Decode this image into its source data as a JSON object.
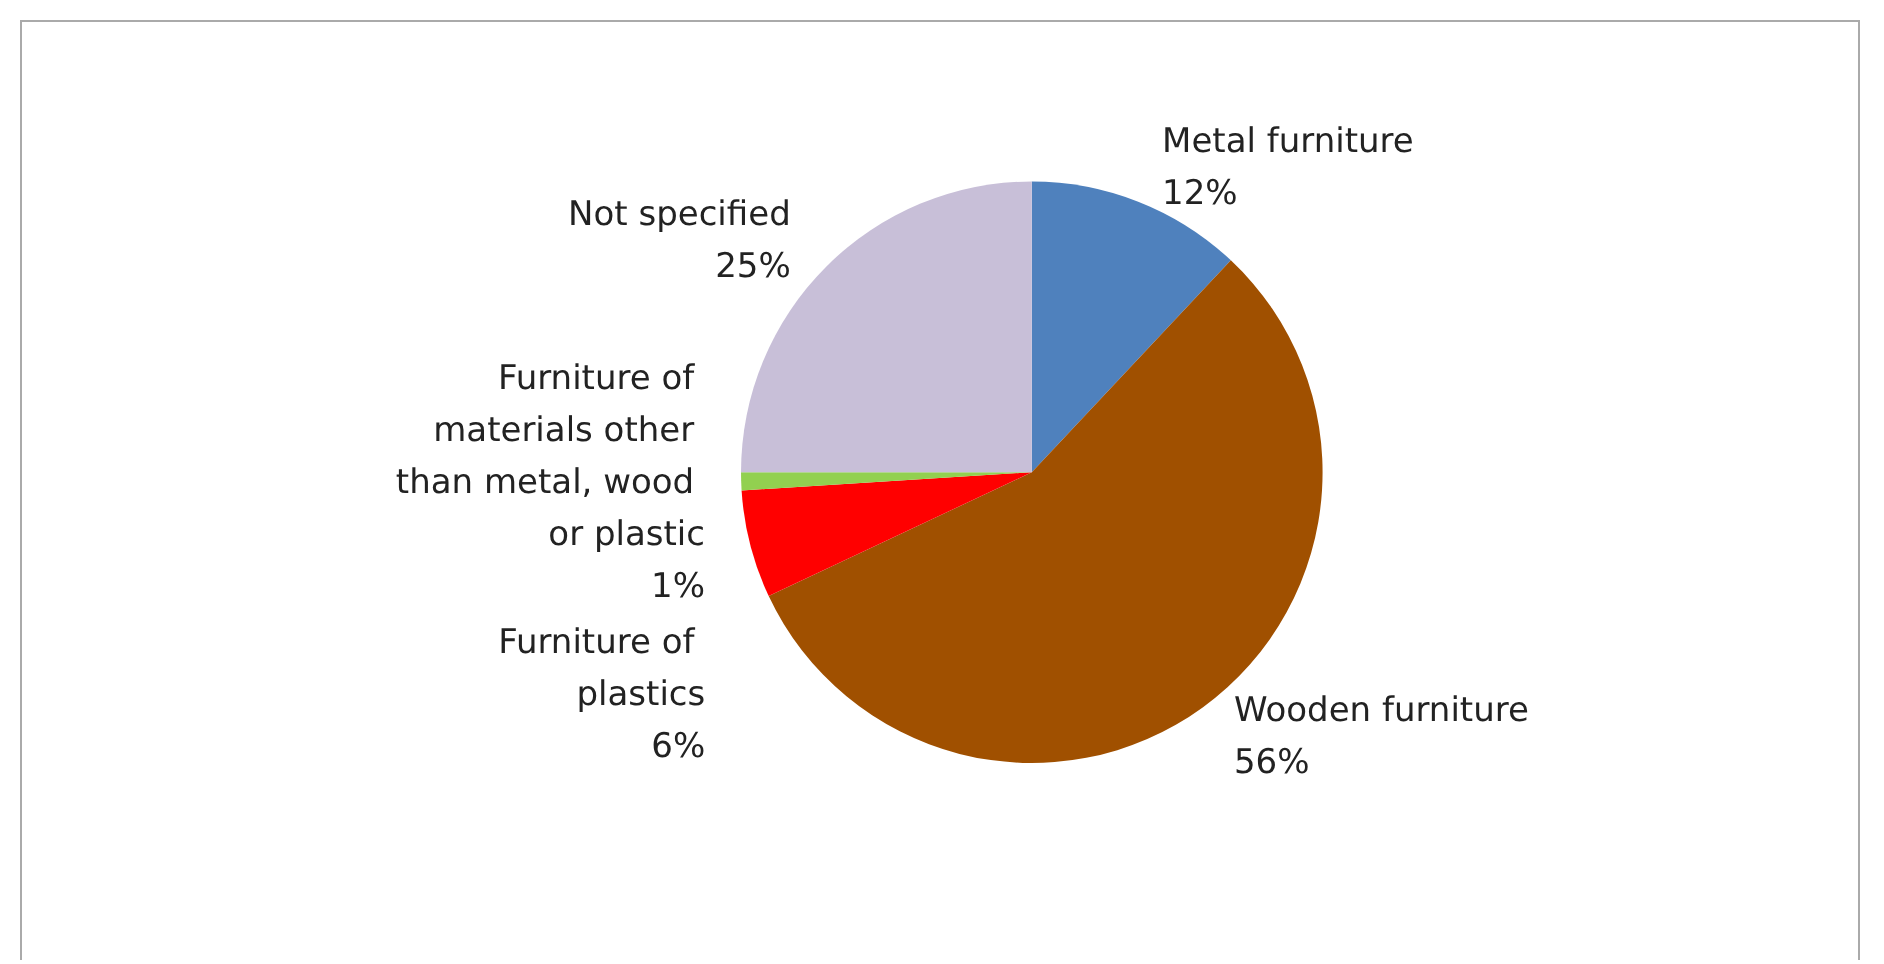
{
  "chart_data": {
    "type": "pie",
    "categories": [
      "Metal furniture",
      "Wooden furniture",
      "Furniture of plastics",
      "Furniture of materials other than metal, wood or plastic",
      "Not specified"
    ],
    "values": [
      12,
      56,
      6,
      1,
      25
    ],
    "colors": [
      "#4f81bd",
      "#a05000",
      "#ff0000",
      "#92d050",
      "#c8bfd8"
    ],
    "value_labels": [
      "12%",
      "56%",
      "6%",
      "1%",
      "25%"
    ],
    "legend": false
  }
}
